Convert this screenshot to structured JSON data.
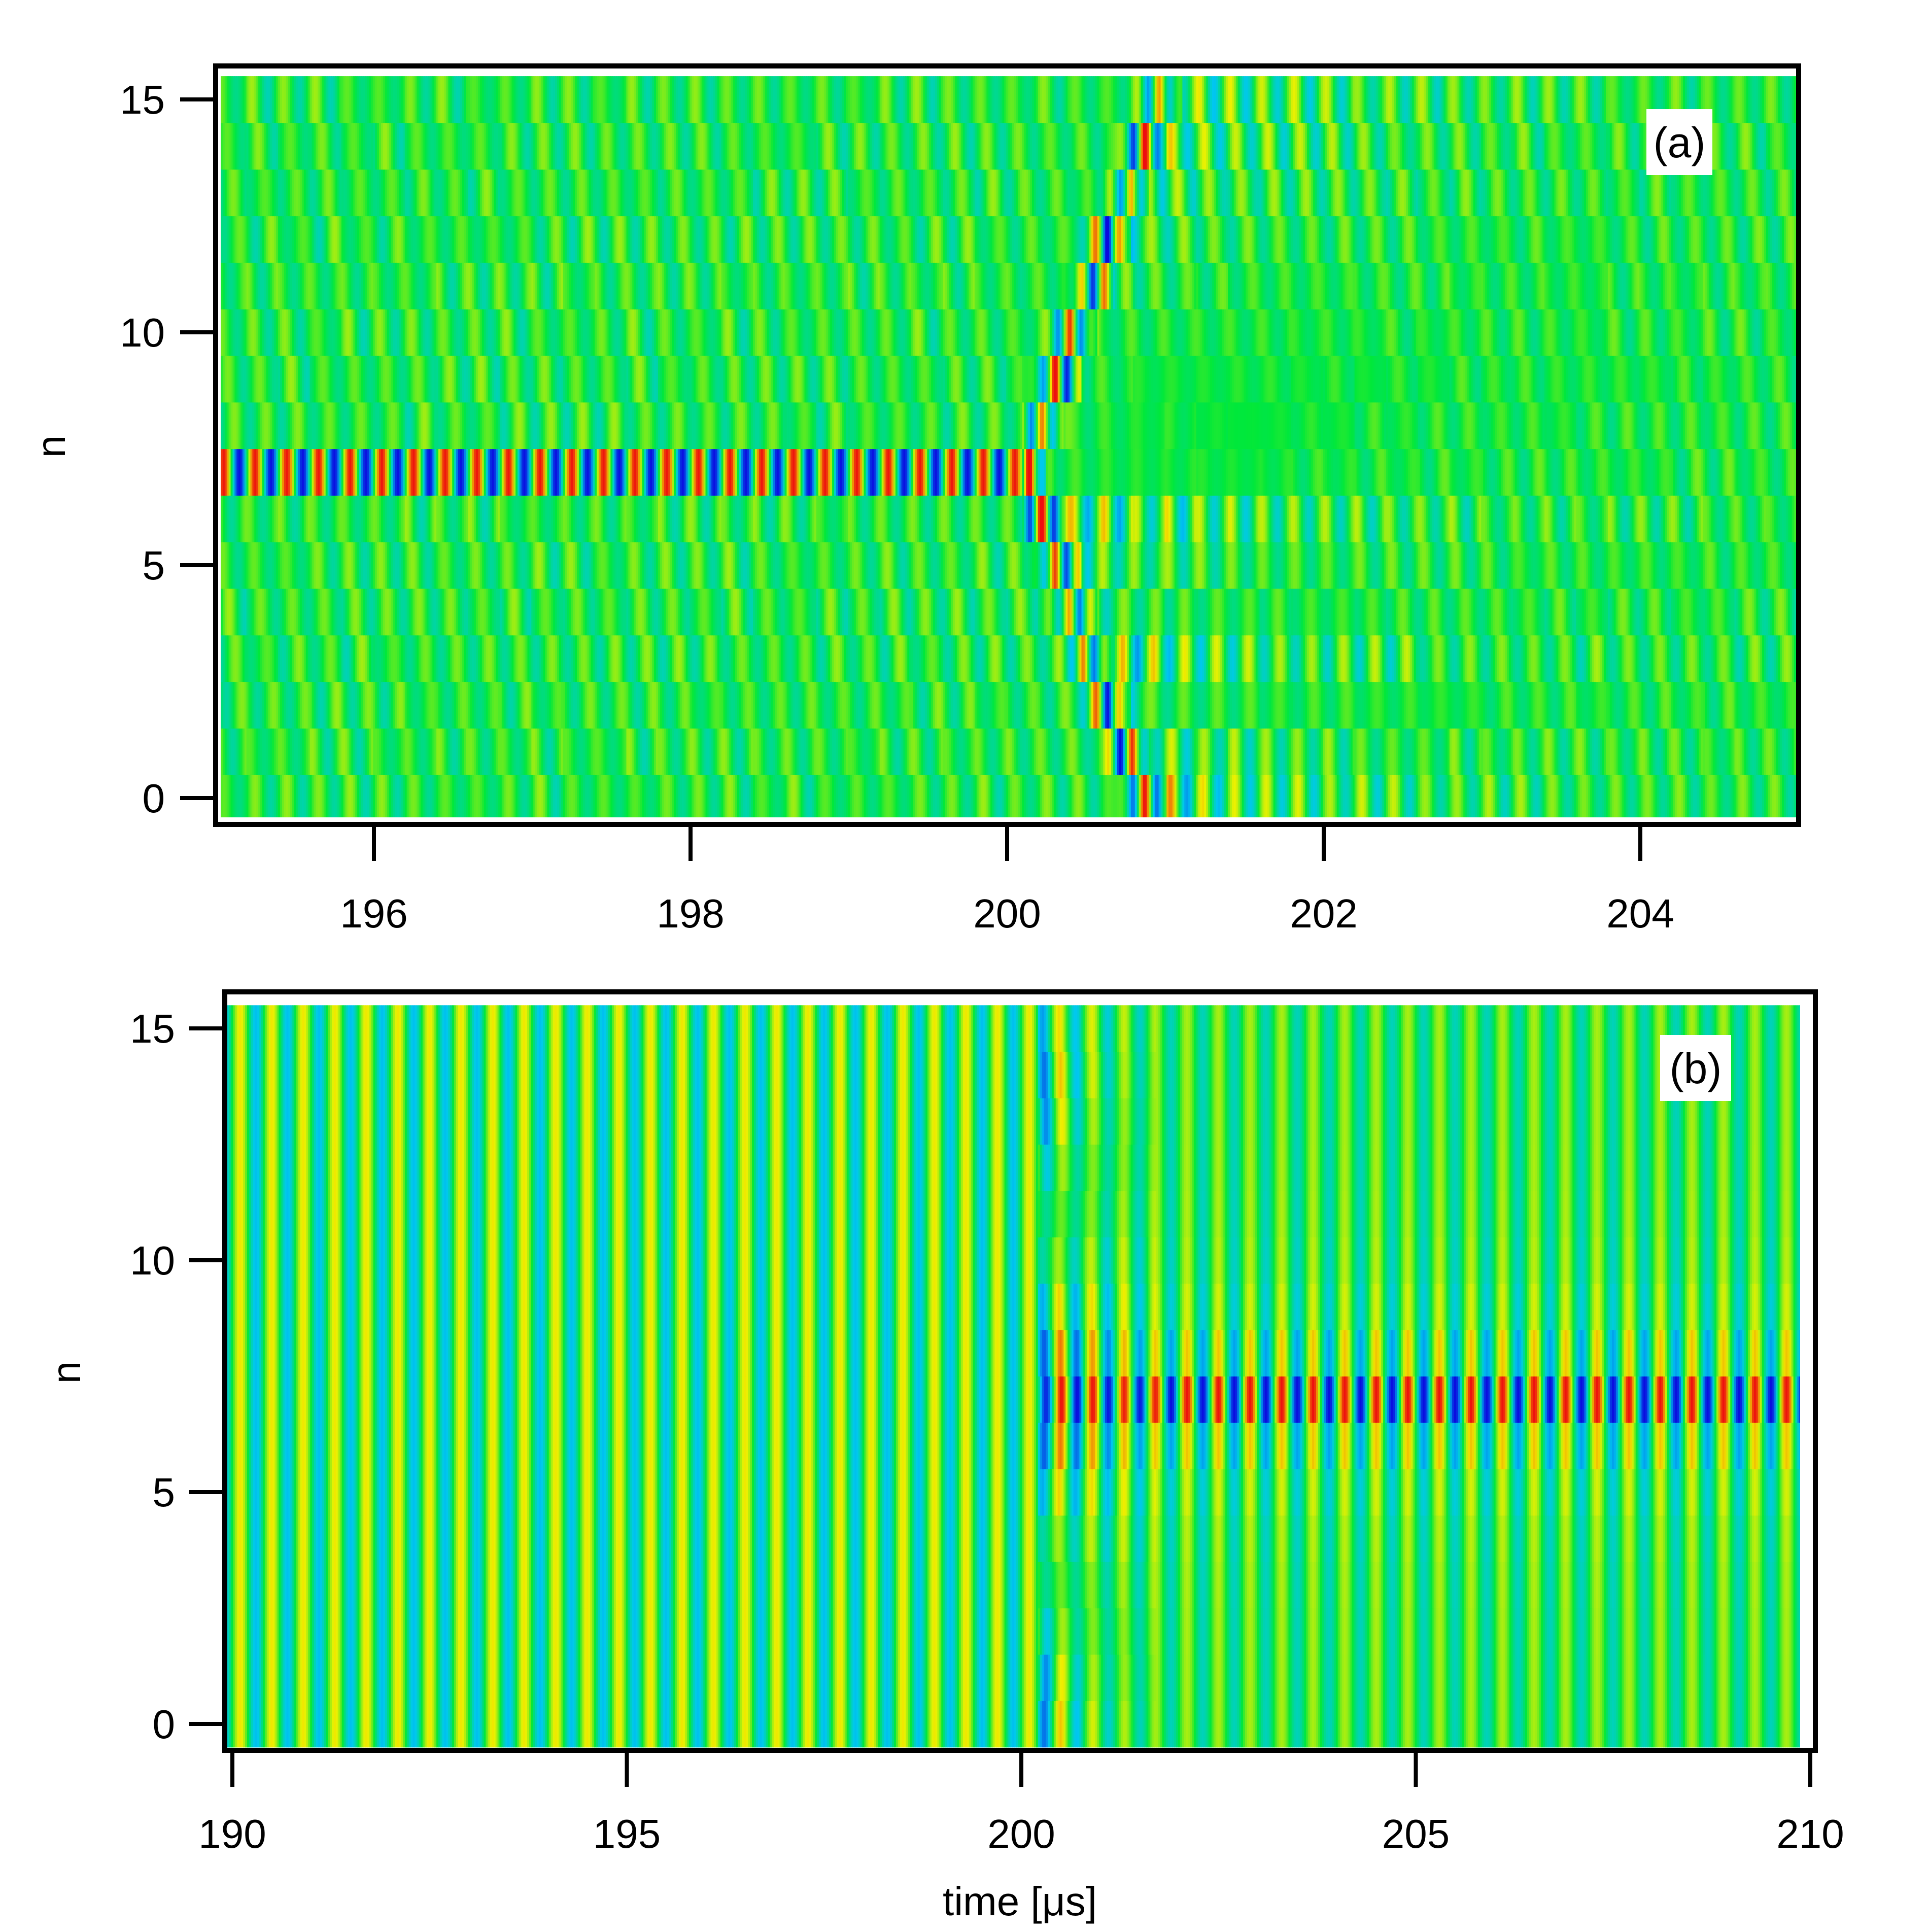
{
  "chart_data": [
    {
      "panel": "(a)",
      "type": "heatmap",
      "title": "",
      "xlabel": "",
      "ylabel": "n",
      "xlim": [
        195,
        205
      ],
      "ylim": [
        -0.5,
        15.5
      ],
      "grid": false,
      "legend": "none",
      "x_ticks": [
        196,
        198,
        200,
        202,
        204
      ],
      "x_tick_labels": [
        "196",
        "198",
        "200",
        "202",
        "204"
      ],
      "y_ticks": [
        0,
        5,
        10,
        15
      ],
      "y_tick_labels": [
        "0",
        "5",
        "10",
        "15"
      ],
      "rows_n": [
        0,
        1,
        2,
        3,
        4,
        5,
        6,
        7,
        8,
        9,
        10,
        11,
        12,
        13,
        14,
        15
      ],
      "oscillation_period_us": 0.2,
      "excited_row_n": 7,
      "excitation_interval_us": [
        195,
        200.1
      ],
      "front_start_us": 200.1,
      "front_speed_rows_per_us": 9.3,
      "colormap": "rainbow",
      "colors": {
        "min": "#0a0ae0",
        "low": "#00c8f0",
        "background": "#00e83a",
        "high": "#f0f000",
        "max": "#ee0e0e"
      }
    },
    {
      "panel": "(b)",
      "type": "heatmap",
      "title": "",
      "xlabel": "time [μs]",
      "ylabel": "n",
      "xlim": [
        190,
        210
      ],
      "ylim": [
        -0.5,
        15.5
      ],
      "grid": false,
      "legend": "none",
      "x_ticks": [
        190,
        195,
        200,
        205,
        210
      ],
      "x_tick_labels": [
        "190",
        "195",
        "200",
        "205",
        "210"
      ],
      "y_ticks": [
        0,
        5,
        10,
        15
      ],
      "y_tick_labels": [
        "0",
        "5",
        "10",
        "15"
      ],
      "rows_n": [
        0,
        1,
        2,
        3,
        4,
        5,
        6,
        7,
        8,
        9,
        10,
        11,
        12,
        13,
        14,
        15
      ],
      "oscillation_period_us": 0.4,
      "localized_row_n": 7,
      "localization_start_us": 200.2,
      "colormap": "rainbow",
      "colors": {
        "min": "#0a0ae0",
        "low": "#00c8f0",
        "background": "#00e83a",
        "high": "#f0f000",
        "max": "#ee0e0e"
      }
    }
  ]
}
